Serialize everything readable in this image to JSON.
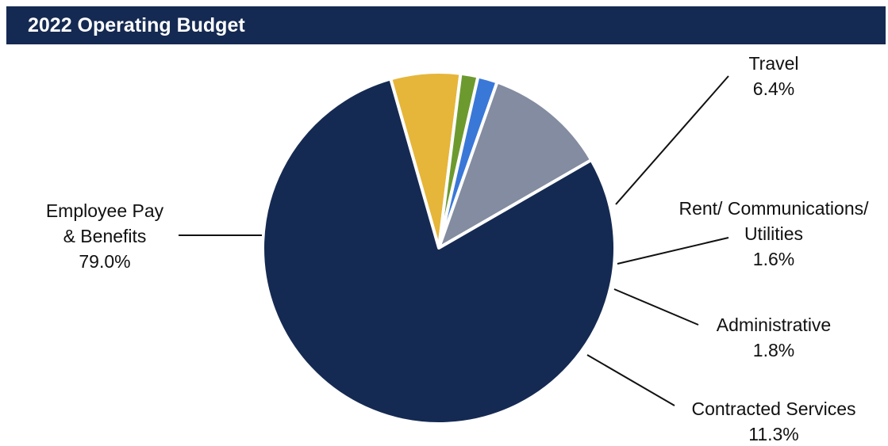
{
  "chart_data": {
    "type": "pie",
    "title": "2022 Operating Budget",
    "slices": [
      {
        "label_lines": [
          "Travel"
        ],
        "value_label": "6.4%",
        "value": 6.4,
        "color": "#e6b63a"
      },
      {
        "label_lines": [
          "Rent/ Communications/",
          "Utilities"
        ],
        "value_label": "1.6%",
        "value": 1.6,
        "color": "#6d9a2f"
      },
      {
        "label_lines": [
          "Administrative"
        ],
        "value_label": "1.8%",
        "value": 1.8,
        "color": "#3a78d8"
      },
      {
        "label_lines": [
          "Contracted Services"
        ],
        "value_label": "11.3%",
        "value": 11.3,
        "color": "#838ca0"
      },
      {
        "label_lines": [
          "Employee Pay",
          "& Benefits"
        ],
        "value_label": "79.0%",
        "value": 79.0,
        "color": "#152a52"
      }
    ]
  }
}
